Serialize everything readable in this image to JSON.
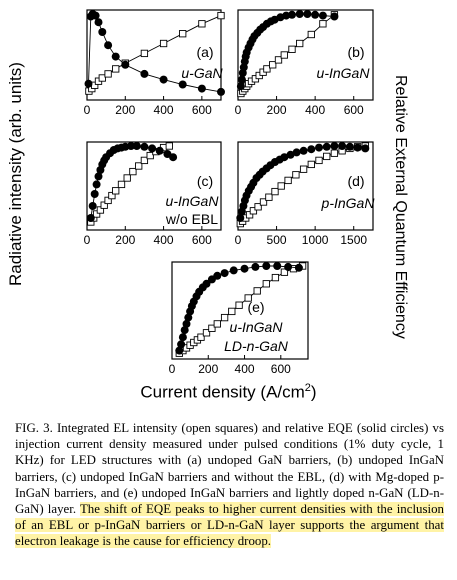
{
  "ylabel_left": "Radiative intensity (arb. units)",
  "ylabel_right": "Relative External Quantum Efficiency",
  "xlabel": "Current density (A/cm",
  "xlabel_sup": "2",
  "xlabel_end": ")",
  "caption": {
    "normal": "FIG. 3. Integrated EL intensity (open squares) and relative EQE (solid circles) vs injection current density measured under pulsed conditions (1% duty cycle, 1 KHz) for LED structures with (a) undoped GaN barriers, (b) undoped InGaN barriers, (c) undoped InGaN barriers and without the EBL, (d) with Mg-doped p-InGaN barriers, and (e) undoped InGaN barriers and lightly doped n-GaN (LD-n-GaN) layer. ",
    "highlight": "The shift of EQE peaks to higher current densities with the inclusion of an EBL or p-InGaN barriers or LD-n-GaN layer supports the argument that electron leakage is the cause for efficiency droop.",
    "highlight_color": "#fff3a6"
  },
  "chart_data": [
    {
      "panel": "a",
      "type": "scatter",
      "labels": [
        "(a)",
        "u-GaN"
      ],
      "xlim": [
        0,
        700
      ],
      "xticks": [
        0,
        200,
        400,
        600
      ],
      "series": [
        {
          "marker": "open-square",
          "x": [
            10,
            25,
            40,
            60,
            80,
            110,
            150,
            200,
            300,
            400,
            500,
            600,
            700
          ],
          "y": [
            0.06,
            0.09,
            0.13,
            0.18,
            0.22,
            0.27,
            0.33,
            0.4,
            0.52,
            0.64,
            0.76,
            0.88,
            0.98
          ]
        },
        {
          "marker": "filled-circle",
          "x": [
            8,
            20,
            30,
            45,
            60,
            80,
            110,
            150,
            200,
            300,
            400,
            500,
            600,
            700
          ],
          "y": [
            0.15,
            0.97,
            1.0,
            0.98,
            0.9,
            0.78,
            0.62,
            0.48,
            0.38,
            0.27,
            0.2,
            0.14,
            0.09,
            0.05
          ]
        }
      ]
    },
    {
      "panel": "b",
      "type": "scatter",
      "labels": [
        "(b)",
        "u-InGaN"
      ],
      "xlim": [
        0,
        700
      ],
      "xticks": [
        0,
        200,
        400,
        600
      ],
      "series": [
        {
          "marker": "open-square",
          "x": [
            15,
            25,
            35,
            45,
            55,
            70,
            90,
            110,
            130,
            150,
            180,
            210,
            240,
            280,
            320,
            380,
            440,
            500
          ],
          "y": [
            0.03,
            0.06,
            0.09,
            0.12,
            0.15,
            0.18,
            0.21,
            0.25,
            0.29,
            0.33,
            0.38,
            0.44,
            0.5,
            0.57,
            0.64,
            0.75,
            0.88,
            0.99
          ]
        },
        {
          "marker": "filled-circle",
          "x": [
            15,
            20,
            25,
            30,
            35,
            40,
            45,
            55,
            65,
            75,
            85,
            100,
            115,
            130,
            150,
            170,
            190,
            220,
            250,
            280,
            320,
            360,
            400,
            440,
            500
          ],
          "y": [
            0.12,
            0.2,
            0.28,
            0.35,
            0.42,
            0.48,
            0.53,
            0.59,
            0.64,
            0.69,
            0.73,
            0.77,
            0.81,
            0.84,
            0.88,
            0.91,
            0.93,
            0.96,
            0.98,
            0.99,
            1.0,
            1.0,
            0.99,
            0.98,
            0.97
          ]
        }
      ]
    },
    {
      "panel": "c",
      "type": "scatter",
      "labels": [
        "(c)",
        "u-InGaN",
        "w/o EBL"
      ],
      "xlim": [
        0,
        700
      ],
      "xticks": [
        0,
        200,
        400,
        600
      ],
      "series": [
        {
          "marker": "open-square",
          "x": [
            20,
            35,
            50,
            70,
            90,
            110,
            130,
            150,
            180,
            210,
            240,
            270,
            300,
            330,
            360,
            400,
            430
          ],
          "y": [
            0.05,
            0.1,
            0.15,
            0.2,
            0.26,
            0.32,
            0.38,
            0.44,
            0.52,
            0.6,
            0.68,
            0.75,
            0.82,
            0.88,
            0.93,
            0.98,
            1.0
          ]
        },
        {
          "marker": "filled-circle",
          "x": [
            20,
            30,
            40,
            50,
            60,
            70,
            80,
            90,
            100,
            120,
            140,
            160,
            180,
            200,
            230,
            260,
            300,
            340,
            380,
            420,
            450
          ],
          "y": [
            0.1,
            0.25,
            0.4,
            0.52,
            0.62,
            0.7,
            0.77,
            0.82,
            0.86,
            0.91,
            0.95,
            0.97,
            0.98,
            0.99,
            1.0,
            1.0,
            0.99,
            0.97,
            0.94,
            0.9,
            0.86
          ]
        }
      ]
    },
    {
      "panel": "d",
      "type": "scatter",
      "labels": [
        "(d)",
        "p-InGaN"
      ],
      "xlim": [
        0,
        1750
      ],
      "xticks": [
        0,
        500,
        1000,
        1500
      ],
      "series": [
        {
          "marker": "open-square",
          "x": [
            30,
            60,
            100,
            150,
            200,
            260,
            330,
            400,
            480,
            560,
            650,
            750,
            850,
            950,
            1050,
            1150,
            1250,
            1350,
            1450,
            1550,
            1650
          ],
          "y": [
            0.03,
            0.06,
            0.1,
            0.14,
            0.19,
            0.24,
            0.3,
            0.36,
            0.43,
            0.5,
            0.57,
            0.64,
            0.71,
            0.77,
            0.82,
            0.87,
            0.91,
            0.94,
            0.97,
            0.99,
            1.0
          ]
        },
        {
          "marker": "filled-circle",
          "x": [
            30,
            50,
            70,
            90,
            110,
            140,
            170,
            200,
            240,
            280,
            320,
            370,
            420,
            480,
            540,
            600,
            680,
            760,
            850,
            950,
            1050,
            1150,
            1250,
            1350,
            1450,
            1550,
            1650
          ],
          "y": [
            0.1,
            0.18,
            0.25,
            0.32,
            0.38,
            0.44,
            0.49,
            0.54,
            0.6,
            0.64,
            0.68,
            0.72,
            0.76,
            0.8,
            0.83,
            0.86,
            0.89,
            0.92,
            0.94,
            0.96,
            0.98,
            0.99,
            1.0,
            1.0,
            0.99,
            0.98,
            0.97
          ]
        }
      ]
    },
    {
      "panel": "e",
      "type": "scatter",
      "labels": [
        "(e)",
        "u-InGaN",
        "LD-n-GaN"
      ],
      "xlim": [
        0,
        750
      ],
      "xticks": [
        0,
        200,
        400,
        600
      ],
      "series": [
        {
          "marker": "open-square",
          "x": [
            40,
            60,
            80,
            100,
            120,
            140,
            160,
            190,
            220,
            250,
            290,
            330,
            370,
            420,
            470,
            520,
            570,
            620,
            670,
            720
          ],
          "y": [
            0.02,
            0.05,
            0.08,
            0.11,
            0.14,
            0.17,
            0.2,
            0.25,
            0.3,
            0.35,
            0.42,
            0.49,
            0.56,
            0.64,
            0.72,
            0.8,
            0.87,
            0.93,
            0.97,
            1.0
          ]
        },
        {
          "marker": "filled-circle",
          "x": [
            40,
            50,
            60,
            70,
            80,
            90,
            100,
            110,
            120,
            135,
            150,
            170,
            190,
            220,
            250,
            290,
            340,
            400,
            460,
            520,
            580,
            640,
            700
          ],
          "y": [
            0.05,
            0.12,
            0.2,
            0.28,
            0.35,
            0.42,
            0.49,
            0.55,
            0.6,
            0.66,
            0.71,
            0.76,
            0.8,
            0.85,
            0.89,
            0.92,
            0.95,
            0.97,
            0.99,
            1.0,
            1.0,
            0.99,
            0.98
          ]
        }
      ]
    }
  ]
}
